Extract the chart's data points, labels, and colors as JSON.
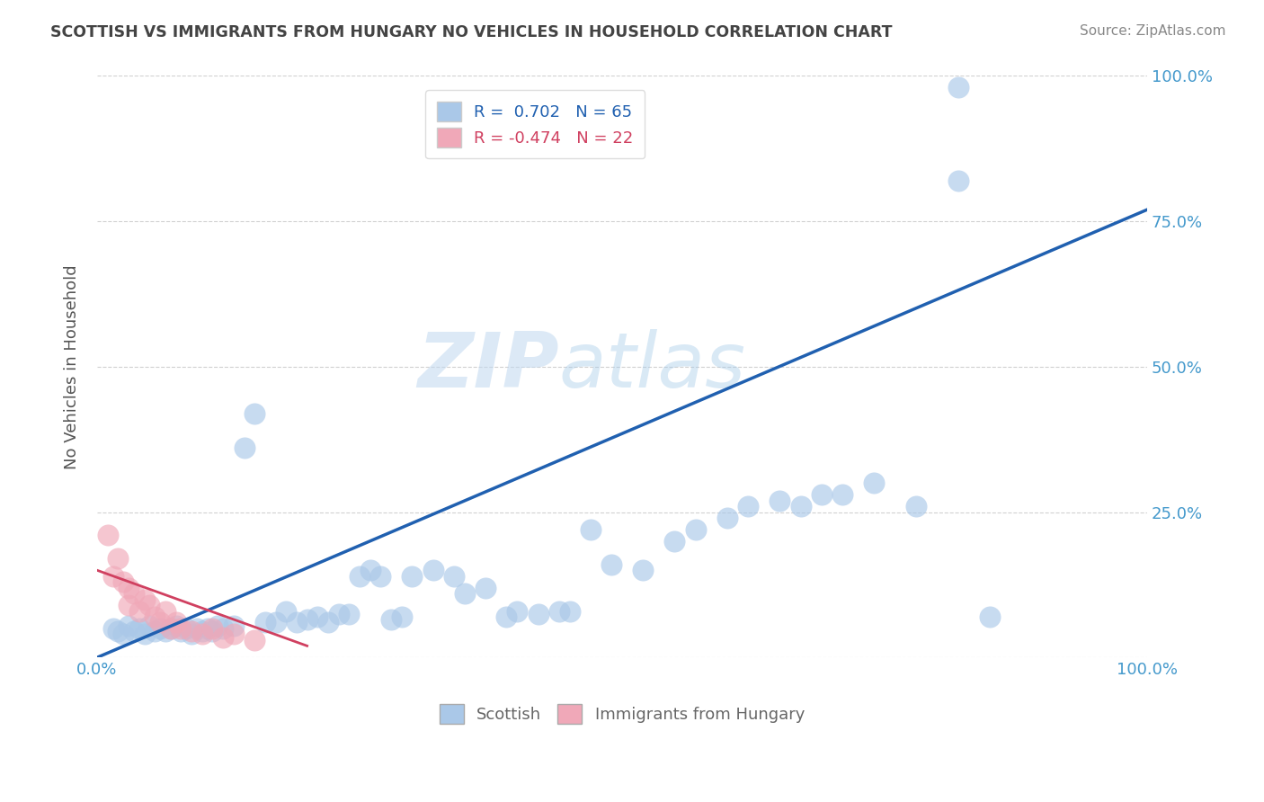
{
  "title": "SCOTTISH VS IMMIGRANTS FROM HUNGARY NO VEHICLES IN HOUSEHOLD CORRELATION CHART",
  "source": "Source: ZipAtlas.com",
  "ylabel": "No Vehicles in Household",
  "xlim": [
    0,
    100
  ],
  "ylim": [
    0,
    100
  ],
  "r_blue": 0.702,
  "n_blue": 65,
  "r_pink": -0.474,
  "n_pink": 22,
  "blue_color": "#aac8e8",
  "pink_color": "#f0a8b8",
  "blue_line_color": "#2060b0",
  "pink_line_color": "#d04060",
  "legend_blue_label": "Scottish",
  "legend_pink_label": "Immigrants from Hungary",
  "watermark_zip": "ZIP",
  "watermark_atlas": "atlas",
  "background_color": "#ffffff",
  "grid_color": "#cccccc",
  "tick_label_color": "#4499cc",
  "axis_label_color": "#555555",
  "title_color": "#444444",
  "source_color": "#888888",
  "blue_x": [
    1.5,
    2.0,
    2.5,
    3.0,
    3.5,
    4.0,
    4.5,
    5.0,
    5.5,
    6.0,
    6.5,
    7.0,
    7.5,
    8.0,
    8.5,
    9.0,
    9.5,
    10.0,
    10.5,
    11.0,
    11.5,
    12.0,
    13.0,
    14.0,
    15.0,
    16.0,
    17.0,
    18.0,
    19.0,
    20.0,
    21.0,
    22.0,
    23.0,
    24.0,
    25.0,
    26.0,
    27.0,
    28.0,
    29.0,
    30.0,
    32.0,
    34.0,
    35.0,
    37.0,
    39.0,
    40.0,
    42.0,
    44.0,
    45.0,
    47.0,
    49.0,
    52.0,
    55.0,
    57.0,
    60.0,
    62.0,
    65.0,
    67.0,
    69.0,
    71.0,
    74.0,
    78.0,
    82.0,
    82.0,
    85.0
  ],
  "blue_y": [
    5.0,
    4.5,
    4.0,
    5.5,
    4.5,
    5.0,
    4.0,
    5.5,
    4.5,
    5.0,
    4.5,
    5.0,
    5.5,
    4.5,
    5.0,
    4.0,
    5.0,
    4.5,
    5.0,
    4.5,
    5.5,
    5.0,
    5.5,
    36.0,
    42.0,
    6.0,
    6.0,
    8.0,
    6.0,
    6.5,
    7.0,
    6.0,
    7.5,
    7.5,
    14.0,
    15.0,
    14.0,
    6.5,
    7.0,
    14.0,
    15.0,
    14.0,
    11.0,
    12.0,
    7.0,
    8.0,
    7.5,
    8.0,
    8.0,
    22.0,
    16.0,
    15.0,
    20.0,
    22.0,
    24.0,
    26.0,
    27.0,
    26.0,
    28.0,
    28.0,
    30.0,
    26.0,
    82.0,
    98.0,
    7.0
  ],
  "pink_x": [
    1.0,
    1.5,
    2.0,
    2.5,
    3.0,
    3.0,
    3.5,
    4.0,
    4.5,
    5.0,
    5.5,
    6.0,
    6.5,
    7.0,
    7.5,
    8.0,
    9.0,
    10.0,
    11.0,
    12.0,
    13.0,
    15.0
  ],
  "pink_y": [
    21.0,
    14.0,
    17.0,
    13.0,
    12.0,
    9.0,
    11.0,
    8.0,
    10.0,
    9.0,
    7.0,
    6.0,
    8.0,
    5.0,
    6.0,
    5.0,
    4.5,
    4.0,
    5.0,
    3.5,
    4.0,
    3.0
  ],
  "blue_line_x0": 0,
  "blue_line_y0": 0,
  "blue_line_x1": 100,
  "blue_line_y1": 77,
  "pink_line_x0": 0,
  "pink_line_y0": 15,
  "pink_line_x1": 20,
  "pink_line_y1": 2
}
